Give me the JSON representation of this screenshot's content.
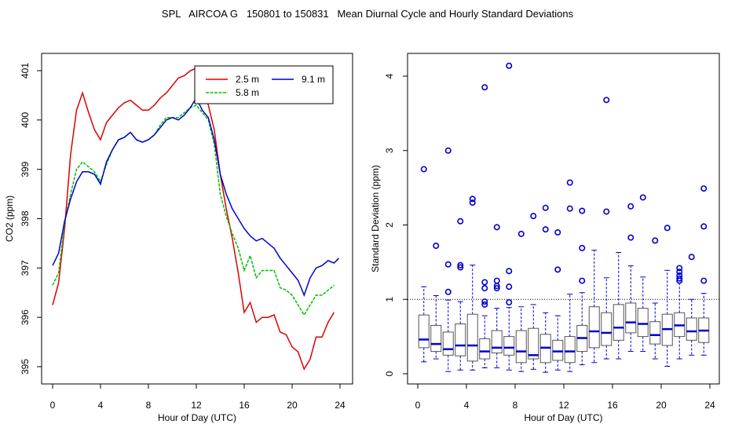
{
  "figure_title": "SPL   AIRCOA G   150801 to 150831   Mean Diurnal Cycle and Hourly Standard Deviations",
  "chart_data": [
    {
      "type": "line",
      "xlabel": "Hour of Day (UTC)",
      "ylabel": "CO2 (ppm)",
      "xlim": [
        0,
        24
      ],
      "ylim": [
        394.9,
        401.1
      ],
      "xticks": [
        0,
        4,
        8,
        12,
        16,
        20,
        24
      ],
      "yticks": [
        395,
        396,
        397,
        398,
        399,
        400,
        401
      ],
      "legend_position": "top-right",
      "series": [
        {
          "name": "2.5 m",
          "color": "#dd0000",
          "x": [
            0,
            0.5,
            1,
            1.5,
            2,
            2.5,
            3,
            3.5,
            4,
            4.5,
            5,
            5.5,
            6,
            6.5,
            7,
            7.5,
            8,
            8.5,
            9,
            9.5,
            10,
            10.5,
            11,
            11.5,
            12,
            12.5,
            13,
            13.5,
            14,
            14.5,
            15,
            15.5,
            16,
            16.5,
            17,
            17.5,
            18,
            18.5,
            19,
            19.5,
            20,
            20.5,
            21,
            21.5,
            22,
            22.5,
            23,
            23.5
          ],
          "y": [
            396.25,
            396.7,
            397.8,
            399.3,
            400.2,
            400.55,
            400.15,
            399.8,
            399.6,
            399.95,
            400.1,
            400.25,
            400.35,
            400.4,
            400.3,
            400.2,
            400.2,
            400.3,
            400.45,
            400.55,
            400.7,
            400.85,
            400.9,
            401.0,
            401.05,
            400.7,
            400.3,
            399.8,
            398.9,
            398.2,
            397.6,
            396.9,
            396.1,
            396.3,
            395.9,
            396.0,
            396.0,
            396.05,
            395.7,
            395.65,
            395.4,
            395.3,
            394.95,
            395.15,
            395.6,
            395.6,
            395.9,
            396.1
          ]
        },
        {
          "name": "5.8 m",
          "color": "#00c000",
          "x": [
            0,
            0.5,
            1,
            1.5,
            2,
            2.5,
            3,
            3.5,
            4,
            4.5,
            5,
            5.5,
            6,
            6.5,
            7,
            7.5,
            8,
            8.5,
            9,
            9.5,
            10,
            10.5,
            11,
            11.5,
            12,
            12.5,
            13,
            13.5,
            14,
            14.5,
            15,
            15.5,
            16,
            16.5,
            17,
            17.5,
            18,
            18.5,
            19,
            19.5,
            20,
            20.5,
            21,
            21.5,
            22,
            22.5,
            23,
            23.5
          ],
          "y": [
            396.65,
            396.9,
            397.9,
            398.5,
            399.0,
            399.15,
            399.05,
            398.95,
            398.75,
            399.1,
            399.4,
            399.6,
            399.65,
            399.75,
            399.6,
            399.55,
            399.6,
            399.7,
            399.9,
            400.05,
            400.05,
            400.05,
            400.15,
            400.25,
            400.3,
            400.15,
            400.0,
            399.5,
            398.5,
            398.05,
            397.7,
            397.4,
            396.95,
            397.25,
            396.8,
            396.95,
            396.95,
            396.95,
            396.6,
            396.55,
            396.45,
            396.25,
            396.05,
            396.25,
            396.45,
            396.45,
            396.55,
            396.65
          ]
        },
        {
          "name": "9.1 m",
          "color": "#0000cc",
          "x": [
            0,
            0.5,
            1,
            1.5,
            2,
            2.5,
            3,
            3.5,
            4,
            4.5,
            5,
            5.5,
            6,
            6.5,
            7,
            7.5,
            8,
            8.5,
            9,
            9.5,
            10,
            10.5,
            11,
            11.5,
            12,
            12.5,
            13,
            13.5,
            14,
            14.5,
            15,
            15.5,
            16,
            16.5,
            17,
            17.5,
            18,
            18.5,
            19,
            19.5,
            20,
            20.5,
            21,
            21.5,
            22,
            22.5,
            23,
            23.5,
            23.9
          ],
          "y": [
            397.05,
            397.3,
            397.95,
            398.4,
            398.75,
            398.95,
            398.95,
            398.9,
            398.7,
            399.15,
            399.4,
            399.6,
            399.65,
            399.75,
            399.6,
            399.55,
            399.6,
            399.7,
            399.85,
            400.0,
            400.05,
            400.0,
            400.1,
            400.25,
            400.45,
            400.2,
            400.05,
            399.6,
            398.9,
            398.5,
            398.2,
            398.0,
            397.8,
            397.65,
            397.55,
            397.6,
            397.5,
            397.4,
            397.2,
            397.05,
            396.9,
            396.75,
            396.45,
            396.8,
            397.0,
            397.05,
            397.15,
            397.1,
            397.2
          ]
        }
      ]
    },
    {
      "type": "boxplot",
      "xlabel": "Hour of Day (UTC)",
      "ylabel": "Standard Deviation (ppm)",
      "xlim": [
        0,
        24
      ],
      "ylim": [
        0,
        4.15
      ],
      "xticks": [
        0,
        4,
        8,
        12,
        16,
        20,
        24
      ],
      "yticks": [
        0,
        1,
        2,
        3,
        4
      ],
      "reference_line": 1,
      "color": "#0000cc",
      "boxes": [
        {
          "hour": 0.5,
          "q1": 0.35,
          "median": 0.46,
          "q3": 0.79,
          "low": 0.16,
          "high": 1.17,
          "outliers": [
            2.75
          ]
        },
        {
          "hour": 1.5,
          "q1": 0.3,
          "median": 0.4,
          "q3": 0.65,
          "low": 0.2,
          "high": 1.05,
          "outliers": [
            1.72
          ]
        },
        {
          "hour": 2.5,
          "q1": 0.25,
          "median": 0.33,
          "q3": 0.56,
          "low": 0.03,
          "high": 0.99,
          "outliers": [
            1.1,
            1.47,
            3.0
          ]
        },
        {
          "hour": 3.5,
          "q1": 0.24,
          "median": 0.38,
          "q3": 0.67,
          "low": 0.05,
          "high": 0.97,
          "outliers": [
            1.43,
            1.46,
            2.05
          ]
        },
        {
          "hour": 4.5,
          "q1": 0.17,
          "median": 0.38,
          "q3": 0.8,
          "low": 0.05,
          "high": 1.46,
          "outliers": [
            2.3,
            2.35
          ]
        },
        {
          "hour": 5.5,
          "q1": 0.2,
          "median": 0.3,
          "q3": 0.47,
          "low": 0.08,
          "high": 0.78,
          "outliers": [
            0.93,
            0.97,
            1.15,
            1.23,
            3.85
          ]
        },
        {
          "hour": 6.5,
          "q1": 0.28,
          "median": 0.35,
          "q3": 0.58,
          "low": 0.08,
          "high": 0.88,
          "outliers": [
            1.15,
            1.18,
            1.25,
            1.97
          ]
        },
        {
          "hour": 7.5,
          "q1": 0.25,
          "median": 0.35,
          "q3": 0.5,
          "low": 0.05,
          "high": 0.89,
          "outliers": [
            0.96,
            1.17,
            1.38,
            4.14
          ]
        },
        {
          "hour": 8.5,
          "q1": 0.15,
          "median": 0.3,
          "q3": 0.58,
          "low": 0.03,
          "high": 0.9,
          "outliers": [
            1.88
          ]
        },
        {
          "hour": 9.5,
          "q1": 0.2,
          "median": 0.25,
          "q3": 0.61,
          "low": 0.06,
          "high": 0.93,
          "outliers": [
            2.12
          ]
        },
        {
          "hour": 10.5,
          "q1": 0.15,
          "median": 0.35,
          "q3": 0.53,
          "low": 0.02,
          "high": 0.82,
          "outliers": [
            1.94,
            2.23
          ]
        },
        {
          "hour": 11.5,
          "q1": 0.18,
          "median": 0.3,
          "q3": 0.45,
          "low": 0.05,
          "high": 0.78,
          "outliers": [
            1.4,
            1.9
          ]
        },
        {
          "hour": 12.5,
          "q1": 0.15,
          "median": 0.3,
          "q3": 0.5,
          "low": 0.03,
          "high": 1.07,
          "outliers": [
            2.22,
            2.57
          ]
        },
        {
          "hour": 13.5,
          "q1": 0.3,
          "median": 0.48,
          "q3": 0.65,
          "low": 0.12,
          "high": 1.09,
          "outliers": [
            1.25,
            1.69,
            2.19
          ]
        },
        {
          "hour": 14.5,
          "q1": 0.35,
          "median": 0.57,
          "q3": 0.9,
          "low": 0.15,
          "high": 1.66,
          "outliers": []
        },
        {
          "hour": 15.5,
          "q1": 0.38,
          "median": 0.55,
          "q3": 0.82,
          "low": 0.2,
          "high": 1.29,
          "outliers": [
            2.18,
            3.68
          ]
        },
        {
          "hour": 16.5,
          "q1": 0.45,
          "median": 0.62,
          "q3": 0.93,
          "low": 0.2,
          "high": 1.63,
          "outliers": []
        },
        {
          "hour": 17.5,
          "q1": 0.55,
          "median": 0.69,
          "q3": 0.95,
          "low": 0.3,
          "high": 1.45,
          "outliers": [
            1.83,
            2.25
          ]
        },
        {
          "hour": 18.5,
          "q1": 0.5,
          "median": 0.67,
          "q3": 0.88,
          "low": 0.3,
          "high": 1.3,
          "outliers": [
            2.37
          ]
        },
        {
          "hour": 19.5,
          "q1": 0.4,
          "median": 0.52,
          "q3": 0.7,
          "low": 0.2,
          "high": 0.95,
          "outliers": [
            1.79
          ]
        },
        {
          "hour": 20.5,
          "q1": 0.38,
          "median": 0.6,
          "q3": 0.8,
          "low": 0.1,
          "high": 1.39,
          "outliers": [
            1.96
          ]
        },
        {
          "hour": 21.5,
          "q1": 0.5,
          "median": 0.65,
          "q3": 0.82,
          "low": 0.2,
          "high": 1.25,
          "outliers": [
            1.25,
            1.28,
            1.32,
            1.37,
            1.42
          ]
        },
        {
          "hour": 22.5,
          "q1": 0.45,
          "median": 0.57,
          "q3": 0.75,
          "low": 0.25,
          "high": 1.0,
          "outliers": [
            1.57
          ]
        },
        {
          "hour": 23.5,
          "q1": 0.42,
          "median": 0.58,
          "q3": 0.75,
          "low": 0.25,
          "high": 1.08,
          "outliers": [
            1.25,
            1.98,
            2.49
          ]
        }
      ]
    }
  ]
}
